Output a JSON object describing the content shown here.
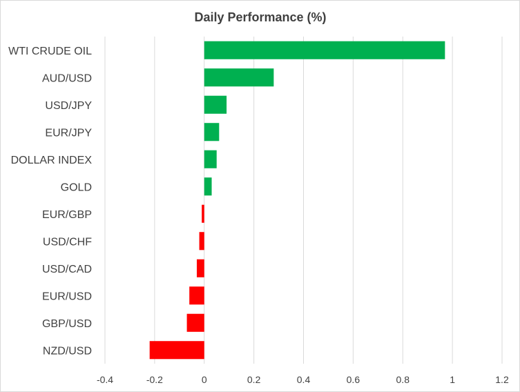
{
  "chart_data": {
    "type": "bar",
    "orientation": "horizontal",
    "title": "Daily Performance (%)",
    "xlabel": "",
    "ylabel": "",
    "categories": [
      "WTI CRUDE OIL",
      "AUD/USD",
      "USD/JPY",
      "EUR/JPY",
      "DOLLAR INDEX",
      "GOLD",
      "EUR/GBP",
      "USD/CHF",
      "USD/CAD",
      "EUR/USD",
      "GBP/USD",
      "NZD/USD"
    ],
    "values": [
      0.97,
      0.28,
      0.09,
      0.06,
      0.05,
      0.03,
      -0.01,
      -0.02,
      -0.03,
      -0.06,
      -0.07,
      -0.22
    ],
    "xlim": [
      -0.4,
      1.2
    ],
    "xticks": [
      -0.4,
      -0.2,
      0,
      0.2,
      0.4,
      0.6,
      0.8,
      1,
      1.2
    ],
    "xtick_labels": [
      "-0.4",
      "-0.2",
      "0",
      "0.2",
      "0.4",
      "0.6",
      "0.8",
      "1",
      "1.2"
    ],
    "grid": "vertical",
    "legend": "none",
    "colors": {
      "positive": "#00b050",
      "negative": "#ff0000",
      "grid": "#d9d9d9",
      "text": "#404040"
    }
  }
}
